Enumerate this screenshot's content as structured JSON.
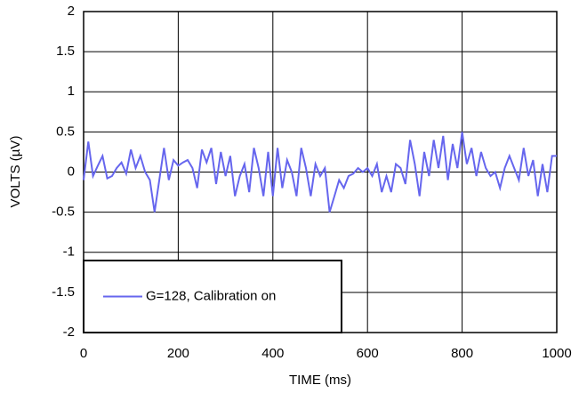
{
  "chart_data": {
    "type": "line",
    "x_label": "TIME (ms)",
    "y_label": "VOLTS (µV)",
    "x": [
      0,
      10,
      20,
      30,
      40,
      50,
      60,
      70,
      80,
      90,
      100,
      110,
      120,
      130,
      140,
      150,
      160,
      170,
      180,
      190,
      200,
      210,
      220,
      230,
      240,
      250,
      260,
      270,
      280,
      290,
      300,
      310,
      320,
      330,
      340,
      350,
      360,
      370,
      380,
      390,
      400,
      410,
      420,
      430,
      440,
      450,
      460,
      470,
      480,
      490,
      500,
      510,
      520,
      530,
      540,
      550,
      560,
      570,
      580,
      590,
      600,
      610,
      620,
      630,
      640,
      650,
      660,
      670,
      680,
      690,
      700,
      710,
      720,
      730,
      740,
      750,
      760,
      770,
      780,
      790,
      800,
      810,
      820,
      830,
      840,
      850,
      860,
      870,
      880,
      890,
      900,
      910,
      920,
      930,
      940,
      950,
      960,
      970,
      980,
      990,
      1000
    ],
    "series": [
      {
        "name": "G=128, Calibration on",
        "color": "#6666ee",
        "values": [
          -0.1,
          0.38,
          -0.05,
          0.08,
          0.2,
          -0.08,
          -0.05,
          0.05,
          0.12,
          -0.02,
          0.28,
          0.05,
          0.2,
          0.0,
          -0.1,
          -0.5,
          -0.1,
          0.3,
          -0.1,
          0.15,
          0.08,
          0.12,
          0.15,
          0.05,
          -0.2,
          0.28,
          0.12,
          0.3,
          -0.15,
          0.25,
          -0.05,
          0.2,
          -0.3,
          -0.05,
          0.1,
          -0.25,
          0.3,
          0.05,
          -0.3,
          0.25,
          -0.3,
          0.3,
          -0.2,
          0.15,
          0.0,
          -0.3,
          0.3,
          0.05,
          -0.3,
          0.1,
          -0.05,
          0.05,
          -0.5,
          -0.3,
          -0.1,
          -0.2,
          -0.05,
          -0.02,
          0.05,
          0.0,
          0.05,
          -0.05,
          0.1,
          -0.25,
          -0.05,
          -0.25,
          0.1,
          0.05,
          -0.15,
          0.4,
          0.1,
          -0.3,
          0.25,
          -0.05,
          0.4,
          0.05,
          0.45,
          -0.1,
          0.35,
          0.05,
          0.5,
          0.1,
          0.3,
          -0.05,
          0.25,
          0.05,
          -0.05,
          0.0,
          -0.2,
          0.05,
          0.2,
          0.05,
          -0.1,
          0.3,
          -0.05,
          0.15,
          -0.3,
          0.1,
          -0.25,
          0.2,
          0.2
        ]
      }
    ],
    "xlim": [
      0,
      1000
    ],
    "xticks": [
      0,
      200,
      400,
      600,
      800,
      1000
    ],
    "ylim": [
      -2,
      2
    ],
    "yticks": [
      2,
      1.5,
      1,
      0.5,
      0,
      -0.5,
      -1,
      -1.5,
      -2
    ],
    "grid": true,
    "legend": "lower left"
  }
}
